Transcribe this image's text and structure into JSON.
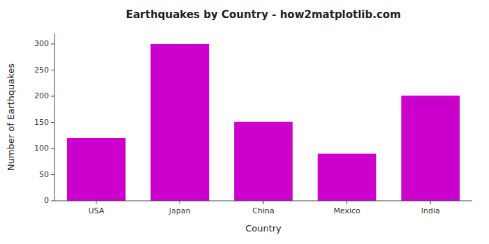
{
  "chart_data": {
    "type": "bar",
    "title": "Earthquakes by Country - how2matplotlib.com",
    "x_label": "Country",
    "y_label": "Number of Earthquakes",
    "categories": [
      "USA",
      "Japan",
      "China",
      "Mexico",
      "India"
    ],
    "values": [
      120,
      300,
      151,
      90,
      201
    ],
    "color": "#cc00cc",
    "ylim": [
      0,
      320
    ],
    "yticks": [
      0,
      50,
      100,
      150,
      200,
      250,
      300
    ],
    "grid": false
  }
}
